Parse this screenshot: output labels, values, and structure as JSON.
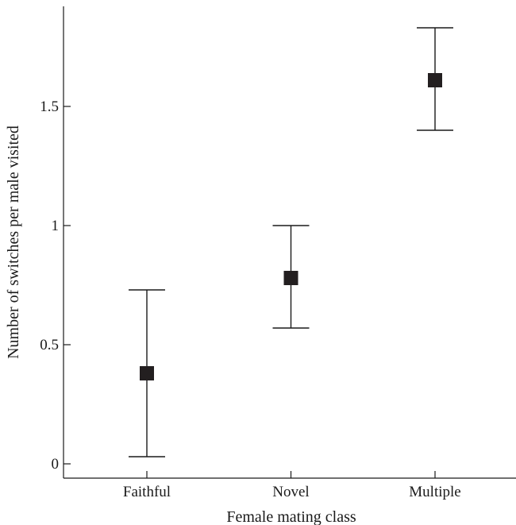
{
  "chart_data": {
    "type": "scatter",
    "xlabel": "Female mating class",
    "ylabel": "Number of switches per male visited",
    "categories": [
      "Faithful",
      "Novel",
      "Multiple"
    ],
    "ylim": [
      -0.06,
      1.92
    ],
    "yticks": [
      0,
      0.5,
      1,
      1.5
    ],
    "ytick_labels": [
      "0",
      "0.5",
      "1",
      "1.5"
    ],
    "grid": false,
    "series": [
      {
        "values": [
          0.38,
          0.78,
          1.61
        ],
        "error_lower": [
          0.03,
          0.57,
          1.4
        ],
        "error_upper": [
          0.73,
          1.0,
          1.83
        ]
      }
    ]
  }
}
